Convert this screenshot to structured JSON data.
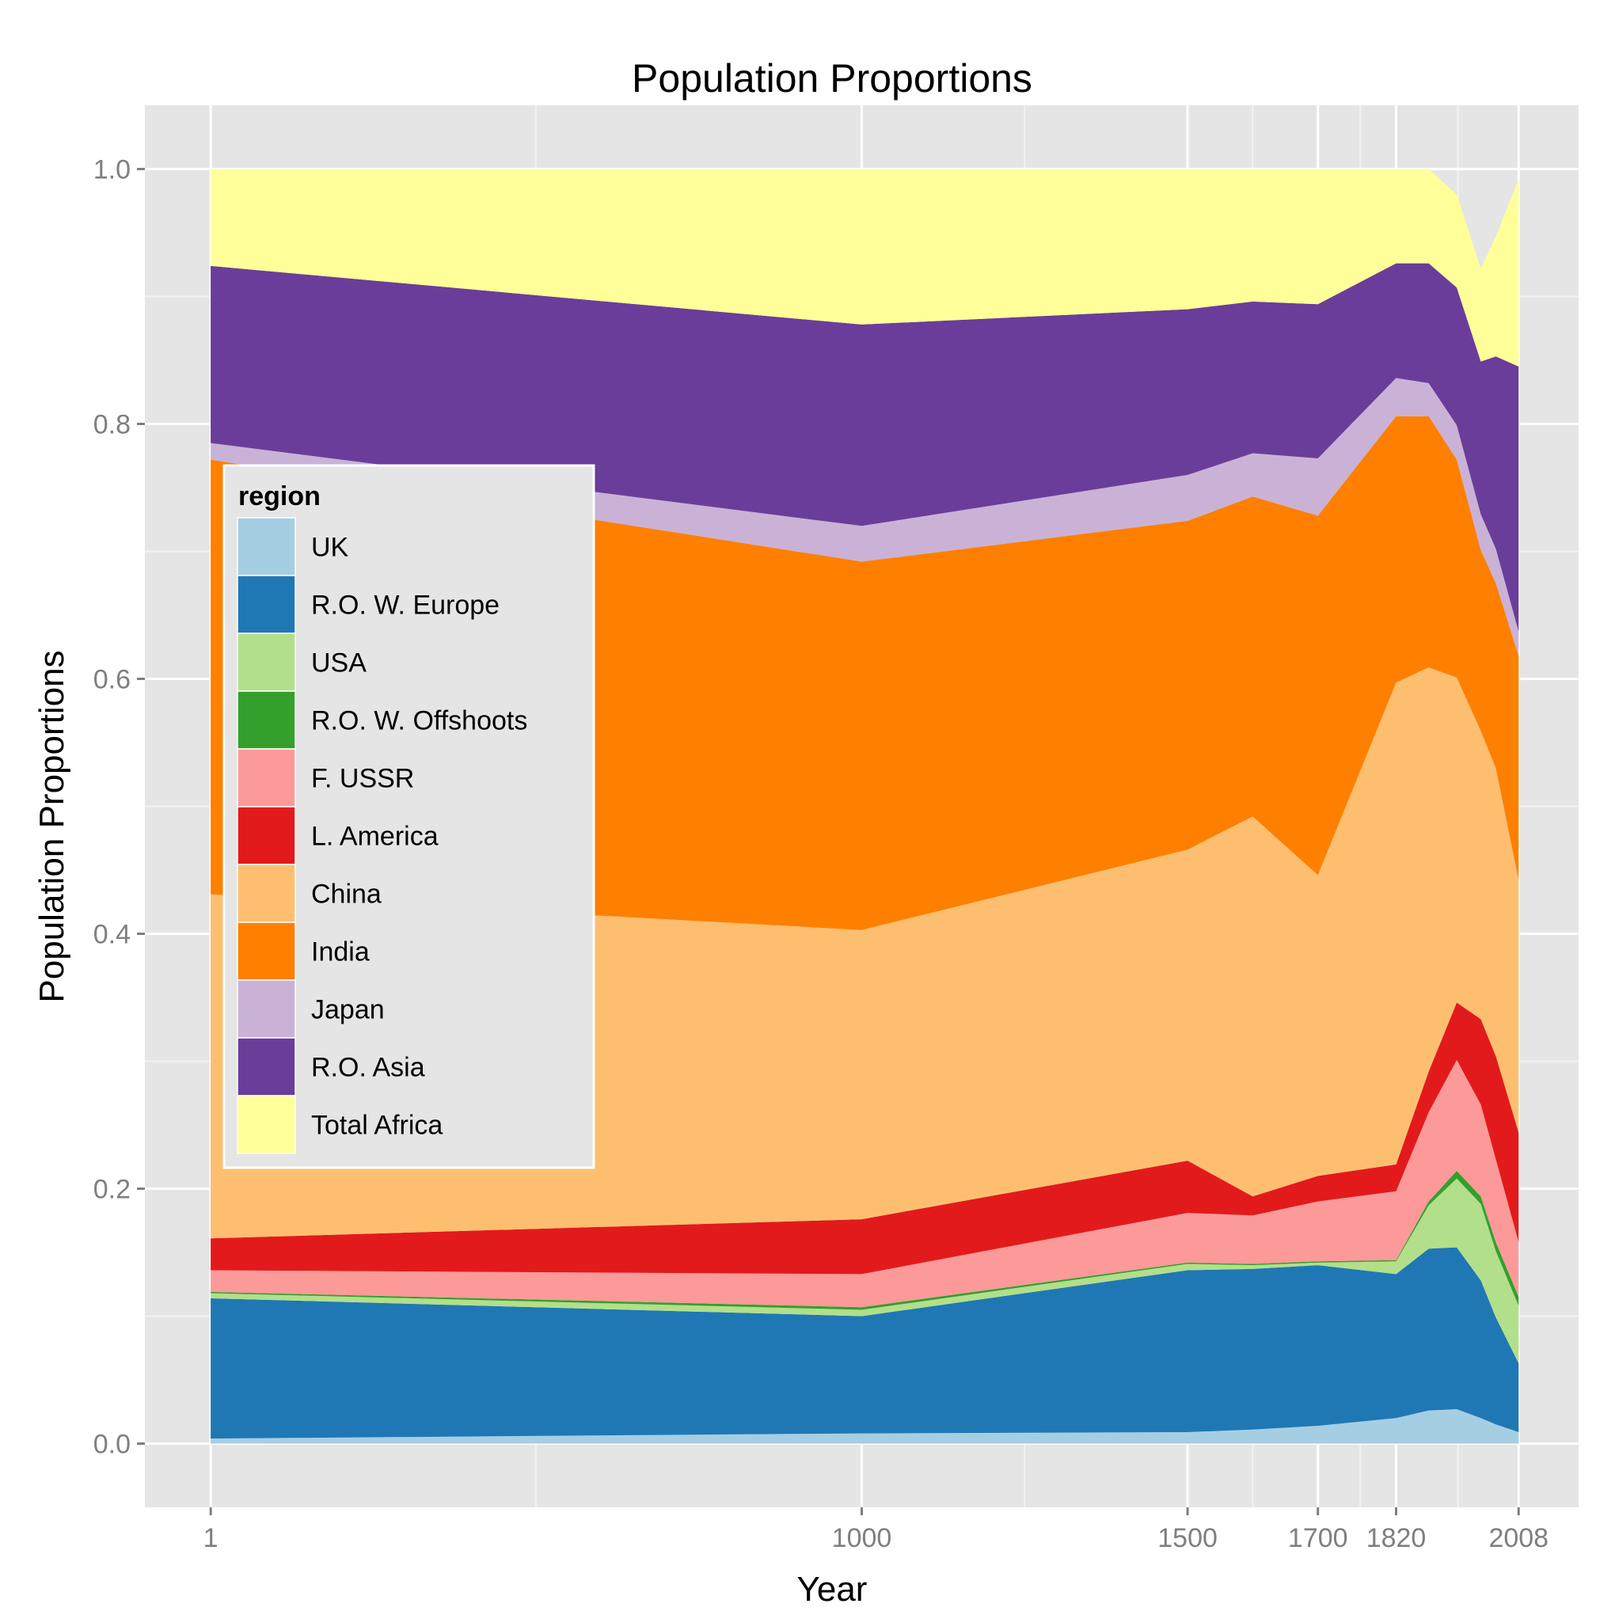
{
  "chart_data": {
    "type": "area",
    "stacked": true,
    "title": "Population Proportions",
    "xlabel": "Year",
    "ylabel": "Population Proportions",
    "x": [
      1,
      1000,
      1500,
      1600,
      1700,
      1820,
      1870,
      1913,
      1950,
      1973,
      2008
    ],
    "x_ticks": [
      1,
      1000,
      1500,
      1700,
      1820,
      2008
    ],
    "x_minor_ticks": [
      500,
      1250,
      1600,
      1765,
      1915
    ],
    "xlim": [
      -100,
      2100
    ],
    "y_ticks": [
      0.0,
      0.2,
      0.4,
      0.6,
      0.8,
      1.0
    ],
    "y_tick_labels": [
      "0.0",
      "0.2",
      "0.4",
      "0.6",
      "0.8",
      "1.0"
    ],
    "ylim": [
      -0.05,
      1.05
    ],
    "grid": true,
    "legend": {
      "title": "region",
      "placement": "inside top-left"
    },
    "series": [
      {
        "name": "UK",
        "color": "#A6CEE3",
        "values": [
          0.004,
          0.008,
          0.009,
          0.011,
          0.014,
          0.02,
          0.026,
          0.027,
          0.02,
          0.015,
          0.009
        ]
      },
      {
        "name": "R.O. W. Europe",
        "color": "#1F78B4",
        "values": [
          0.11,
          0.092,
          0.127,
          0.126,
          0.126,
          0.113,
          0.127,
          0.127,
          0.108,
          0.084,
          0.054
        ]
      },
      {
        "name": "USA",
        "color": "#B2DF8A",
        "values": [
          0.004,
          0.005,
          0.005,
          0.003,
          0.002,
          0.01,
          0.034,
          0.054,
          0.06,
          0.052,
          0.045
        ]
      },
      {
        "name": "R.O. W. Offshoots",
        "color": "#33A02C",
        "values": [
          0.001,
          0.002,
          0.001,
          0.001,
          0.001,
          0.001,
          0.003,
          0.006,
          0.006,
          0.007,
          0.007
        ]
      },
      {
        "name": "F. USSR",
        "color": "#FB9A99",
        "values": [
          0.017,
          0.026,
          0.039,
          0.038,
          0.047,
          0.054,
          0.07,
          0.087,
          0.072,
          0.065,
          0.043
        ]
      },
      {
        "name": "L. America",
        "color": "#E31A1C",
        "values": [
          0.025,
          0.043,
          0.041,
          0.015,
          0.02,
          0.021,
          0.032,
          0.045,
          0.067,
          0.081,
          0.086
        ]
      },
      {
        "name": "China",
        "color": "#FDBF6F",
        "values": [
          0.27,
          0.227,
          0.244,
          0.298,
          0.236,
          0.378,
          0.317,
          0.255,
          0.226,
          0.226,
          0.198
        ]
      },
      {
        "name": "India",
        "color": "#FF7F00",
        "values": [
          0.341,
          0.289,
          0.258,
          0.251,
          0.282,
          0.209,
          0.197,
          0.171,
          0.142,
          0.145,
          0.176
        ]
      },
      {
        "name": "Japan",
        "color": "#CAB2D6",
        "values": [
          0.013,
          0.028,
          0.036,
          0.034,
          0.045,
          0.03,
          0.026,
          0.027,
          0.028,
          0.027,
          0.019
        ]
      },
      {
        "name": "R.O. Asia",
        "color": "#6A3D9A",
        "values": [
          0.139,
          0.158,
          0.13,
          0.119,
          0.121,
          0.09,
          0.094,
          0.108,
          0.12,
          0.151,
          0.208
        ]
      },
      {
        "name": "Total Africa",
        "color": "#FFFF99",
        "values": [
          0.076,
          0.122,
          0.11,
          0.104,
          0.106,
          0.074,
          0.074,
          0.073,
          0.073,
          0.094,
          0.147
        ]
      }
    ]
  }
}
